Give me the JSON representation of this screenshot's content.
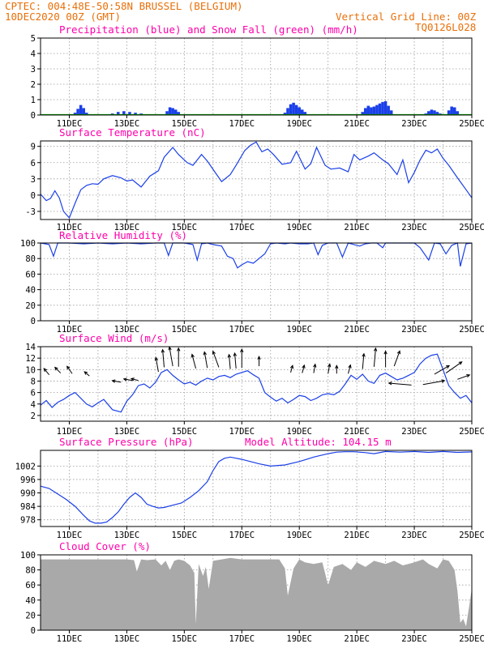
{
  "header": {
    "line1": "CPTEC:  004:48E-50:58N  BRUSSEL (BELGIUM)",
    "run_date": "10DEC2020 00Z (GMT)",
    "grid_note": "Vertical Grid Line: 00Z",
    "model_code": "TQ0126L028"
  },
  "colors": {
    "series_line": "#1a3fe8",
    "precip_bar": "#1a3fe8",
    "snow": "#00b000",
    "cloud": "#a9a9a9",
    "wind_arrow": "#000000",
    "title": "#ff00aa",
    "header": "#e8700a"
  },
  "chart_data": [
    {
      "id": "precip",
      "type": "bar",
      "title": "Precipitation (blue) and Snow Fall (green) (mm/h)",
      "x_range": [
        10,
        25
      ],
      "x_tick_labels": [
        "11DEC",
        "13DEC",
        "15DEC",
        "17DEC",
        "19DEC",
        "21DEC",
        "23DEC",
        "25DEC"
      ],
      "ylim": [
        0,
        5
      ],
      "y_ticks": [
        0,
        1,
        2,
        3,
        4,
        5
      ],
      "grid": true,
      "rain_x": [
        11.2,
        11.3,
        11.4,
        11.5,
        11.6,
        12.5,
        12.7,
        12.9,
        13.1,
        13.3,
        13.5,
        14.4,
        14.5,
        14.6,
        14.7,
        14.8,
        18.5,
        18.6,
        18.7,
        18.8,
        18.9,
        19.0,
        19.1,
        19.2,
        21.2,
        21.3,
        21.4,
        21.5,
        21.6,
        21.7,
        21.8,
        21.9,
        22.0,
        22.1,
        22.2,
        23.4,
        23.5,
        23.6,
        23.7,
        23.8,
        23.9,
        24.2,
        24.3,
        24.4,
        24.5
      ],
      "rain_y": [
        0.15,
        0.4,
        0.65,
        0.45,
        0.15,
        0.1,
        0.2,
        0.25,
        0.2,
        0.15,
        0.1,
        0.25,
        0.5,
        0.45,
        0.35,
        0.2,
        0.15,
        0.45,
        0.7,
        0.8,
        0.65,
        0.5,
        0.35,
        0.2,
        0.2,
        0.45,
        0.6,
        0.5,
        0.55,
        0.65,
        0.75,
        0.85,
        0.9,
        0.6,
        0.3,
        0.1,
        0.25,
        0.35,
        0.3,
        0.2,
        0.1,
        0.3,
        0.55,
        0.5,
        0.25
      ],
      "snow_baseline": 0
    },
    {
      "id": "temperature",
      "type": "line",
      "title": "Surface Temperature (nC)",
      "x_range": [
        10,
        25
      ],
      "x_tick_labels": [
        "11DEC",
        "13DEC",
        "15DEC",
        "17DEC",
        "19DEC",
        "21DEC",
        "23DEC",
        "25DEC"
      ],
      "ylim": [
        -4.5,
        10
      ],
      "y_ticks": [
        -3,
        0,
        3,
        6,
        9
      ],
      "grid": true,
      "x": [
        10.0,
        10.2,
        10.35,
        10.5,
        10.65,
        10.8,
        11.0,
        11.2,
        11.4,
        11.6,
        11.8,
        12.0,
        12.2,
        12.5,
        12.8,
        13.0,
        13.2,
        13.5,
        13.8,
        14.1,
        14.3,
        14.6,
        14.8,
        15.1,
        15.3,
        15.6,
        15.8,
        16.1,
        16.3,
        16.6,
        16.8,
        17.1,
        17.3,
        17.5,
        17.7,
        17.9,
        18.1,
        18.4,
        18.7,
        18.9,
        19.2,
        19.4,
        19.6,
        19.9,
        20.1,
        20.4,
        20.7,
        20.9,
        21.1,
        21.4,
        21.6,
        21.9,
        22.1,
        22.4,
        22.6,
        22.8,
        23.0,
        23.2,
        23.4,
        23.6,
        23.8,
        24.0,
        24.2,
        24.5,
        24.8,
        25.0
      ],
      "y": [
        0.2,
        -1.0,
        -0.6,
        0.8,
        -0.5,
        -3.0,
        -4.2,
        -1.5,
        1.0,
        1.8,
        2.1,
        2.0,
        3.0,
        3.6,
        3.2,
        2.6,
        2.8,
        1.5,
        3.5,
        4.5,
        7.0,
        8.8,
        7.5,
        6.0,
        5.5,
        7.5,
        6.3,
        4.0,
        2.5,
        3.8,
        5.5,
        8.2,
        9.2,
        9.8,
        8.0,
        8.5,
        7.5,
        5.7,
        6.0,
        8.1,
        4.8,
        5.8,
        8.8,
        5.5,
        4.8,
        5.0,
        4.3,
        7.5,
        6.5,
        7.2,
        7.8,
        6.5,
        5.8,
        3.8,
        6.5,
        2.3,
        4.2,
        6.5,
        8.3,
        7.8,
        8.5,
        6.8,
        5.5,
        3.2,
        1.0,
        -0.5
      ]
    },
    {
      "id": "humidity",
      "type": "line",
      "title": "Relative Humidity (%)",
      "x_range": [
        10,
        25
      ],
      "x_tick_labels": [
        "11DEC",
        "13DEC",
        "15DEC",
        "17DEC",
        "19DEC",
        "21DEC",
        "23DEC",
        "25DEC"
      ],
      "ylim": [
        0,
        100
      ],
      "y_ticks": [
        0,
        20,
        40,
        60,
        80,
        100
      ],
      "grid": true,
      "x": [
        10.0,
        10.3,
        10.45,
        10.6,
        10.8,
        11.0,
        11.5,
        12.0,
        12.5,
        13.0,
        13.5,
        14.0,
        14.3,
        14.45,
        14.6,
        14.8,
        15.0,
        15.3,
        15.45,
        15.6,
        15.8,
        16.0,
        16.3,
        16.5,
        16.7,
        16.85,
        17.0,
        17.2,
        17.4,
        17.6,
        17.8,
        18.0,
        18.2,
        18.5,
        18.7,
        19.0,
        19.3,
        19.5,
        19.65,
        19.8,
        20.0,
        20.3,
        20.5,
        20.7,
        20.9,
        21.1,
        21.3,
        21.5,
        21.7,
        21.9,
        22.0,
        22.3,
        22.6,
        22.8,
        23.0,
        23.2,
        23.5,
        23.7,
        23.9,
        24.1,
        24.3,
        24.5,
        24.6,
        24.8,
        25.0
      ],
      "y": [
        100,
        98,
        83,
        100,
        100,
        100,
        99,
        100,
        99,
        100,
        99,
        100,
        100,
        84,
        100,
        100,
        100,
        98,
        78,
        99,
        100,
        98,
        96,
        83,
        80,
        68,
        72,
        76,
        74,
        80,
        86,
        99,
        100,
        99,
        100,
        99,
        99,
        100,
        85,
        97,
        100,
        100,
        82,
        100,
        98,
        96,
        99,
        100,
        100,
        94,
        100,
        100,
        100,
        100,
        100,
        94,
        78,
        100,
        99,
        86,
        97,
        100,
        70,
        99,
        100
      ]
    },
    {
      "id": "wind",
      "type": "line",
      "title": "Surface Wind (m/s)",
      "x_range": [
        10,
        25
      ],
      "x_tick_labels": [
        "11DEC",
        "13DEC",
        "15DEC",
        "17DEC",
        "19DEC",
        "21DEC",
        "23DEC",
        "25DEC"
      ],
      "ylim": [
        1,
        14
      ],
      "y_ticks": [
        2,
        4,
        6,
        8,
        10,
        12,
        14
      ],
      "grid": true,
      "x": [
        10.0,
        10.2,
        10.4,
        10.6,
        10.8,
        11.0,
        11.2,
        11.4,
        11.6,
        11.8,
        12.0,
        12.2,
        12.5,
        12.8,
        13.0,
        13.2,
        13.4,
        13.6,
        13.8,
        14.0,
        14.2,
        14.4,
        14.6,
        14.8,
        15.0,
        15.2,
        15.4,
        15.6,
        15.8,
        16.0,
        16.2,
        16.4,
        16.6,
        16.8,
        17.0,
        17.2,
        17.4,
        17.6,
        17.8,
        18.0,
        18.2,
        18.4,
        18.6,
        18.8,
        19.0,
        19.2,
        19.4,
        19.6,
        19.8,
        20.0,
        20.2,
        20.4,
        20.6,
        20.8,
        21.0,
        21.2,
        21.4,
        21.6,
        21.8,
        22.0,
        22.2,
        22.4,
        22.6,
        22.8,
        23.0,
        23.2,
        23.4,
        23.6,
        23.8,
        24.0,
        24.2,
        24.4,
        24.6,
        24.8,
        25.0
      ],
      "y": [
        3.8,
        4.6,
        3.4,
        4.3,
        4.8,
        5.5,
        6.0,
        5.0,
        4.0,
        3.5,
        4.2,
        4.8,
        3.0,
        2.6,
        4.5,
        5.6,
        7.2,
        7.5,
        6.8,
        7.8,
        9.5,
        10.0,
        9.0,
        8.2,
        7.5,
        7.8,
        7.3,
        8.0,
        8.5,
        8.2,
        8.8,
        9.0,
        8.6,
        9.2,
        9.5,
        9.8,
        9.1,
        8.5,
        6.0,
        5.2,
        4.5,
        5.0,
        4.2,
        4.8,
        5.5,
        5.3,
        4.6,
        5.0,
        5.6,
        5.8,
        5.6,
        6.2,
        7.5,
        9.0,
        8.3,
        9.2,
        8.0,
        7.6,
        9.0,
        9.4,
        8.8,
        8.2,
        8.5,
        9.0,
        9.5,
        11.0,
        12.0,
        12.5,
        12.7,
        10.0,
        7.2,
        6.0,
        5.0,
        5.5,
        4.2
      ],
      "arrows_x": [
        10.3,
        10.7,
        11.1,
        11.7,
        12.8,
        13.2,
        13.4,
        14.1,
        14.3,
        14.6,
        14.8,
        15.4,
        15.8,
        16.2,
        16.6,
        16.8,
        17.0,
        17.6,
        18.7,
        19.1,
        19.5,
        20.0,
        20.3,
        20.7,
        21.2,
        21.6,
        22.0,
        22.3,
        22.9,
        23.3,
        23.7,
        24.1,
        24.5
      ],
      "arrows_y": [
        9.1,
        9.4,
        9.3,
        8.9,
        7.8,
        8.1,
        8.1,
        9.6,
        10.4,
        10.6,
        10.5,
        10.2,
        10.3,
        10.4,
        10.1,
        10.2,
        10.3,
        10.6,
        9.5,
        9.4,
        9.4,
        9.3,
        9.3,
        9.3,
        10.1,
        10.5,
        10.4,
        10.6,
        7.3,
        7.4,
        9.2,
        9.4,
        8.3
      ],
      "arrows_dir": [
        -130,
        -135,
        -125,
        -140,
        -170,
        -170,
        -165,
        -100,
        -95,
        -100,
        -90,
        -105,
        -100,
        -110,
        -95,
        -95,
        -90,
        -90,
        -75,
        -75,
        -80,
        -80,
        -90,
        -75,
        -85,
        -85,
        -90,
        -70,
        -175,
        -10,
        -30,
        -35,
        -20
      ],
      "arrows_len": [
        1.0,
        1.0,
        1.1,
        0.8,
        1.1,
        1.1,
        0.9,
        1.8,
        2.2,
        2.4,
        2.3,
        1.8,
        2.0,
        2.1,
        1.8,
        1.9,
        2.3,
        1.2,
        0.9,
        1.0,
        1.1,
        1.2,
        1.0,
        1.1,
        1.9,
        2.3,
        2.0,
        2.0,
        2.8,
        2.7,
        2.1,
        2.4,
        1.6
      ]
    },
    {
      "id": "pressure",
      "type": "line",
      "title": "Surface Pressure (hPa)",
      "annotation": "Model Altitude: 104.15 m",
      "x_range": [
        10,
        25
      ],
      "x_tick_labels": [
        "11DEC",
        "13DEC",
        "15DEC",
        "17DEC",
        "19DEC",
        "21DEC",
        "23DEC",
        "25DEC"
      ],
      "ylim": [
        975,
        1009
      ],
      "y_ticks": [
        978,
        984,
        990,
        996,
        1002
      ],
      "grid": true,
      "x": [
        10.0,
        10.3,
        10.6,
        10.9,
        11.2,
        11.5,
        11.7,
        11.9,
        12.1,
        12.3,
        12.5,
        12.7,
        12.9,
        13.1,
        13.3,
        13.5,
        13.7,
        13.9,
        14.1,
        14.3,
        14.6,
        14.9,
        15.2,
        15.5,
        15.8,
        16.0,
        16.2,
        16.4,
        16.6,
        16.8,
        17.0,
        17.3,
        17.6,
        18.0,
        18.5,
        19.0,
        19.5,
        20.0,
        20.3,
        20.6,
        20.9,
        21.3,
        21.6,
        22.0,
        22.5,
        23.0,
        23.5,
        24.0,
        24.5,
        25.0
      ],
      "y": [
        993,
        992,
        989.5,
        987,
        984,
        980,
        977.5,
        976.5,
        976.5,
        977,
        979,
        981.5,
        985,
        988,
        990,
        988,
        985,
        984,
        983.3,
        983.5,
        984.5,
        985.5,
        988,
        991,
        995,
        1000,
        1004,
        1005.5,
        1006,
        1005.5,
        1005,
        1004,
        1003,
        1002,
        1002.5,
        1004,
        1006,
        1007.5,
        1008.2,
        1008.4,
        1008.4,
        1008,
        1007.5,
        1008.5,
        1008.2,
        1008.5,
        1008.1,
        1008.5,
        1008.1,
        1008.3
      ]
    },
    {
      "id": "cloud",
      "type": "area",
      "title": "Cloud Cover (%)",
      "x_range": [
        10,
        25
      ],
      "x_tick_labels": [
        "11DEC",
        "13DEC",
        "15DEC",
        "17DEC",
        "19DEC",
        "21DEC",
        "23DEC",
        "25DEC"
      ],
      "ylim": [
        0,
        100
      ],
      "y_ticks": [
        0,
        20,
        40,
        60,
        80,
        100
      ],
      "grid": true,
      "x": [
        10.0,
        10.5,
        11.0,
        11.5,
        12.0,
        12.5,
        13.0,
        13.25,
        13.35,
        13.5,
        13.7,
        14.0,
        14.2,
        14.35,
        14.5,
        14.65,
        14.8,
        15.0,
        15.2,
        15.35,
        15.4,
        15.5,
        15.65,
        15.75,
        15.85,
        16.0,
        16.3,
        16.6,
        17.0,
        17.5,
        18.0,
        18.3,
        18.5,
        18.6,
        18.8,
        19.0,
        19.2,
        19.5,
        19.8,
        20.0,
        20.2,
        20.5,
        20.8,
        21.0,
        21.3,
        21.6,
        22.0,
        22.3,
        22.6,
        23.0,
        23.3,
        23.5,
        23.8,
        24.0,
        24.2,
        24.4,
        24.5,
        24.6,
        24.7,
        24.8,
        24.9,
        25.0
      ],
      "y": [
        94,
        94,
        94,
        94,
        94,
        94,
        94,
        93,
        78,
        94,
        93,
        94,
        86,
        92,
        80,
        92,
        94,
        92,
        86,
        76,
        8,
        88,
        72,
        84,
        55,
        92,
        94,
        96,
        94,
        94,
        94,
        94,
        82,
        46,
        82,
        94,
        90,
        88,
        90,
        60,
        84,
        88,
        80,
        90,
        84,
        92,
        88,
        92,
        86,
        90,
        94,
        88,
        82,
        94,
        92,
        80,
        52,
        10,
        15,
        5,
        30,
        55
      ]
    }
  ]
}
